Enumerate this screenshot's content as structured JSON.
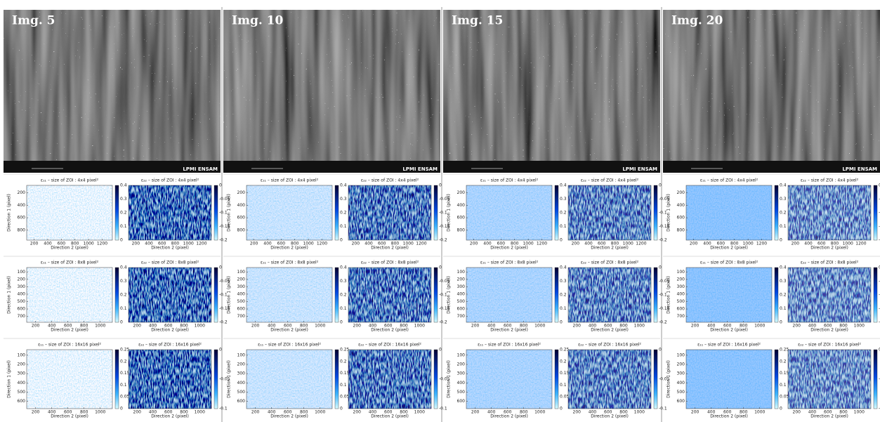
{
  "images": [
    "Img. 5",
    "Img. 10",
    "Img. 15",
    "Img. 20"
  ],
  "sem_footer": "LPMI ENSAM",
  "rows": [
    {
      "left_title": "ε₁₁ – size of ZOI : 4x4 pixel²",
      "right_title": "ε₂₂ – size of ZOI : 4x4 pixel²",
      "ylabel": "Direction 1 (pixel)",
      "xlabel": "Direction 2 (pixel)",
      "yticks": [
        200,
        400,
        600,
        800
      ],
      "xticks": [
        200,
        400,
        600,
        800,
        1000,
        1200
      ],
      "left_colorbar": [
        0.4,
        0.3,
        0.2,
        0.1,
        0
      ],
      "right_colorbar": [
        0,
        -0.05,
        -0.1,
        -0.15,
        -0.2
      ]
    },
    {
      "left_title": "ε₁₁ – size of ZOI : 8x8 pixel²",
      "right_title": "ε₂₂ – size of ZOI : 8x8 pixel²",
      "ylabel": "Direction 1 (pixel)",
      "xlabel": "Direction 2 (pixel)",
      "yticks": [
        100,
        200,
        300,
        400,
        500,
        600,
        700
      ],
      "xticks": [
        200,
        400,
        600,
        800,
        1000
      ],
      "left_colorbar": [
        0.4,
        0.3,
        0.2,
        0.1,
        0
      ],
      "right_colorbar": [
        0,
        -0.05,
        -0.1,
        -0.15,
        -0.2
      ]
    },
    {
      "left_title": "ε₁₁ – size of ZOI : 16x16 pixel²",
      "right_title": "ε₂₂ – size of ZOI : 16x16 pixel²",
      "ylabel": "Direction 1 (pixel)",
      "xlabel": "Direction 2 (pixel)",
      "yticks": [
        100,
        200,
        300,
        400,
        500,
        600
      ],
      "xticks": [
        200,
        400,
        600,
        800,
        1000
      ],
      "left_colorbar": [
        0.25,
        0.2,
        0.15,
        0.1,
        0.05,
        0
      ],
      "right_colorbar": [
        0,
        -0.05,
        -0.1
      ]
    }
  ]
}
